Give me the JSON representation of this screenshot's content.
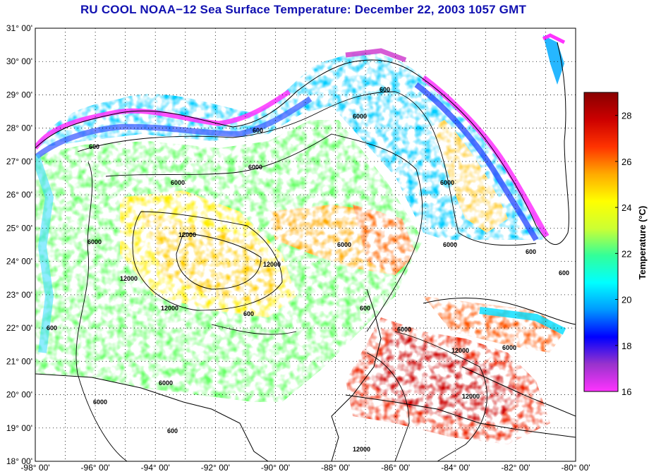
{
  "title": "RU COOL  NOAA−12  Sea Surface Temperature:  December 22, 2003 1057 GMT",
  "axes": {
    "lat_labels": [
      "31° 00'",
      "30° 00'",
      "29° 00'",
      "28° 00'",
      "27° 00'",
      "26° 00'",
      "25° 00'",
      "24° 00'",
      "23° 00'",
      "22° 00'",
      "21° 00'",
      "20° 00'",
      "19° 00'",
      "18° 00'"
    ],
    "lon_labels": [
      "-98° 00'",
      "-96° 00'",
      "-94° 00'",
      "-92° 00'",
      "-90° 00'",
      "-88° 00'",
      "-86° 00'",
      "-84° 00'",
      "-82° 00'",
      "-80° 00'"
    ],
    "lat_range": [
      18,
      31
    ],
    "lon_range": [
      -98,
      -80
    ],
    "grid": true
  },
  "colorbar": {
    "title": "Temperature (°C)",
    "min": 16,
    "max": 29,
    "ticks": [
      "16",
      "18",
      "20",
      "22",
      "24",
      "26",
      "28"
    ],
    "stops": [
      "#ff33ff",
      "#9933cc",
      "#0000ff",
      "#0099ff",
      "#00ffff",
      "#33ff99",
      "#ccff33",
      "#ffff00",
      "#ffaa00",
      "#ff3300",
      "#cc0000",
      "#880000"
    ]
  },
  "contour_labels": [
    "600",
    "600",
    "600",
    "600",
    "600",
    "600",
    "600",
    "6000",
    "6000",
    "6000",
    "6000",
    "6000",
    "6000",
    "6000",
    "6000",
    "6000",
    "12000",
    "12000",
    "12000",
    "12000",
    "12000",
    "12000",
    "12000",
    "600",
    "6000",
    "6000",
    "600"
  ]
}
